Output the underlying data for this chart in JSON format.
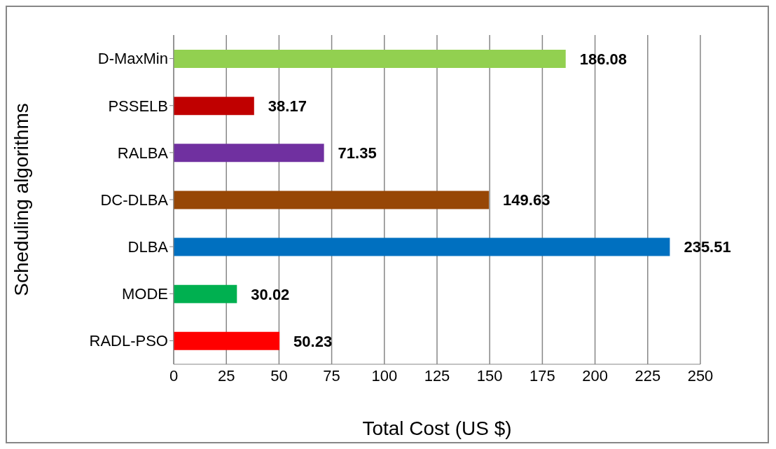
{
  "chart_data": {
    "type": "bar",
    "orientation": "horizontal",
    "xlabel": "Total Cost (US $)",
    "ylabel": "Scheduling algorithms",
    "categories": [
      "D-MaxMin",
      "PSSELB",
      "RALBA",
      "DC-DLBA",
      "DLBA",
      "MODE",
      "RADL-PSO"
    ],
    "values": [
      186.08,
      38.17,
      71.35,
      149.63,
      235.51,
      30.02,
      50.23
    ],
    "colors": [
      "#92d050",
      "#c00000",
      "#7030a0",
      "#974706",
      "#0070c0",
      "#00b050",
      "#ff0000"
    ],
    "xlim": [
      0,
      250
    ],
    "xticks": [
      0,
      25,
      50,
      75,
      100,
      125,
      150,
      175,
      200,
      225,
      250
    ],
    "grid": "x",
    "data_labels": true
  }
}
